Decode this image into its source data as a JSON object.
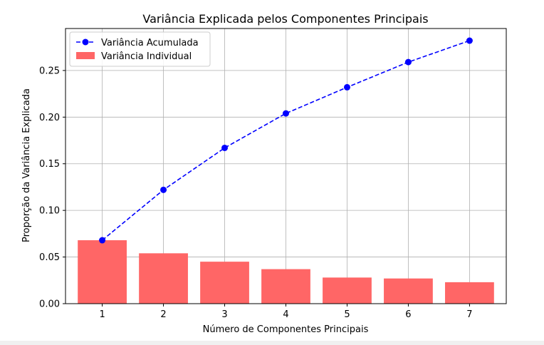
{
  "chart_data": {
    "type": "bar",
    "title": "Variância Explicada pelos Componentes Principais",
    "xlabel": "Número de Componentes Principais",
    "ylabel": "Proporção da Variância Explicada",
    "categories": [
      "1",
      "2",
      "3",
      "4",
      "5",
      "6",
      "7"
    ],
    "series": [
      {
        "name": "Variância Individual",
        "kind": "bar",
        "color": "#ff6666",
        "values": [
          0.068,
          0.054,
          0.045,
          0.037,
          0.028,
          0.027,
          0.023
        ]
      },
      {
        "name": "Variância Acumulada",
        "kind": "line",
        "style": "dashed",
        "marker": "circle",
        "color": "#0000ff",
        "values": [
          0.068,
          0.122,
          0.167,
          0.204,
          0.232,
          0.259,
          0.282
        ]
      }
    ],
    "ylim": [
      0,
      0.295
    ],
    "yticks": [
      "0.00",
      "0.05",
      "0.10",
      "0.15",
      "0.20",
      "0.25"
    ],
    "grid": true,
    "legend": "top-left"
  }
}
